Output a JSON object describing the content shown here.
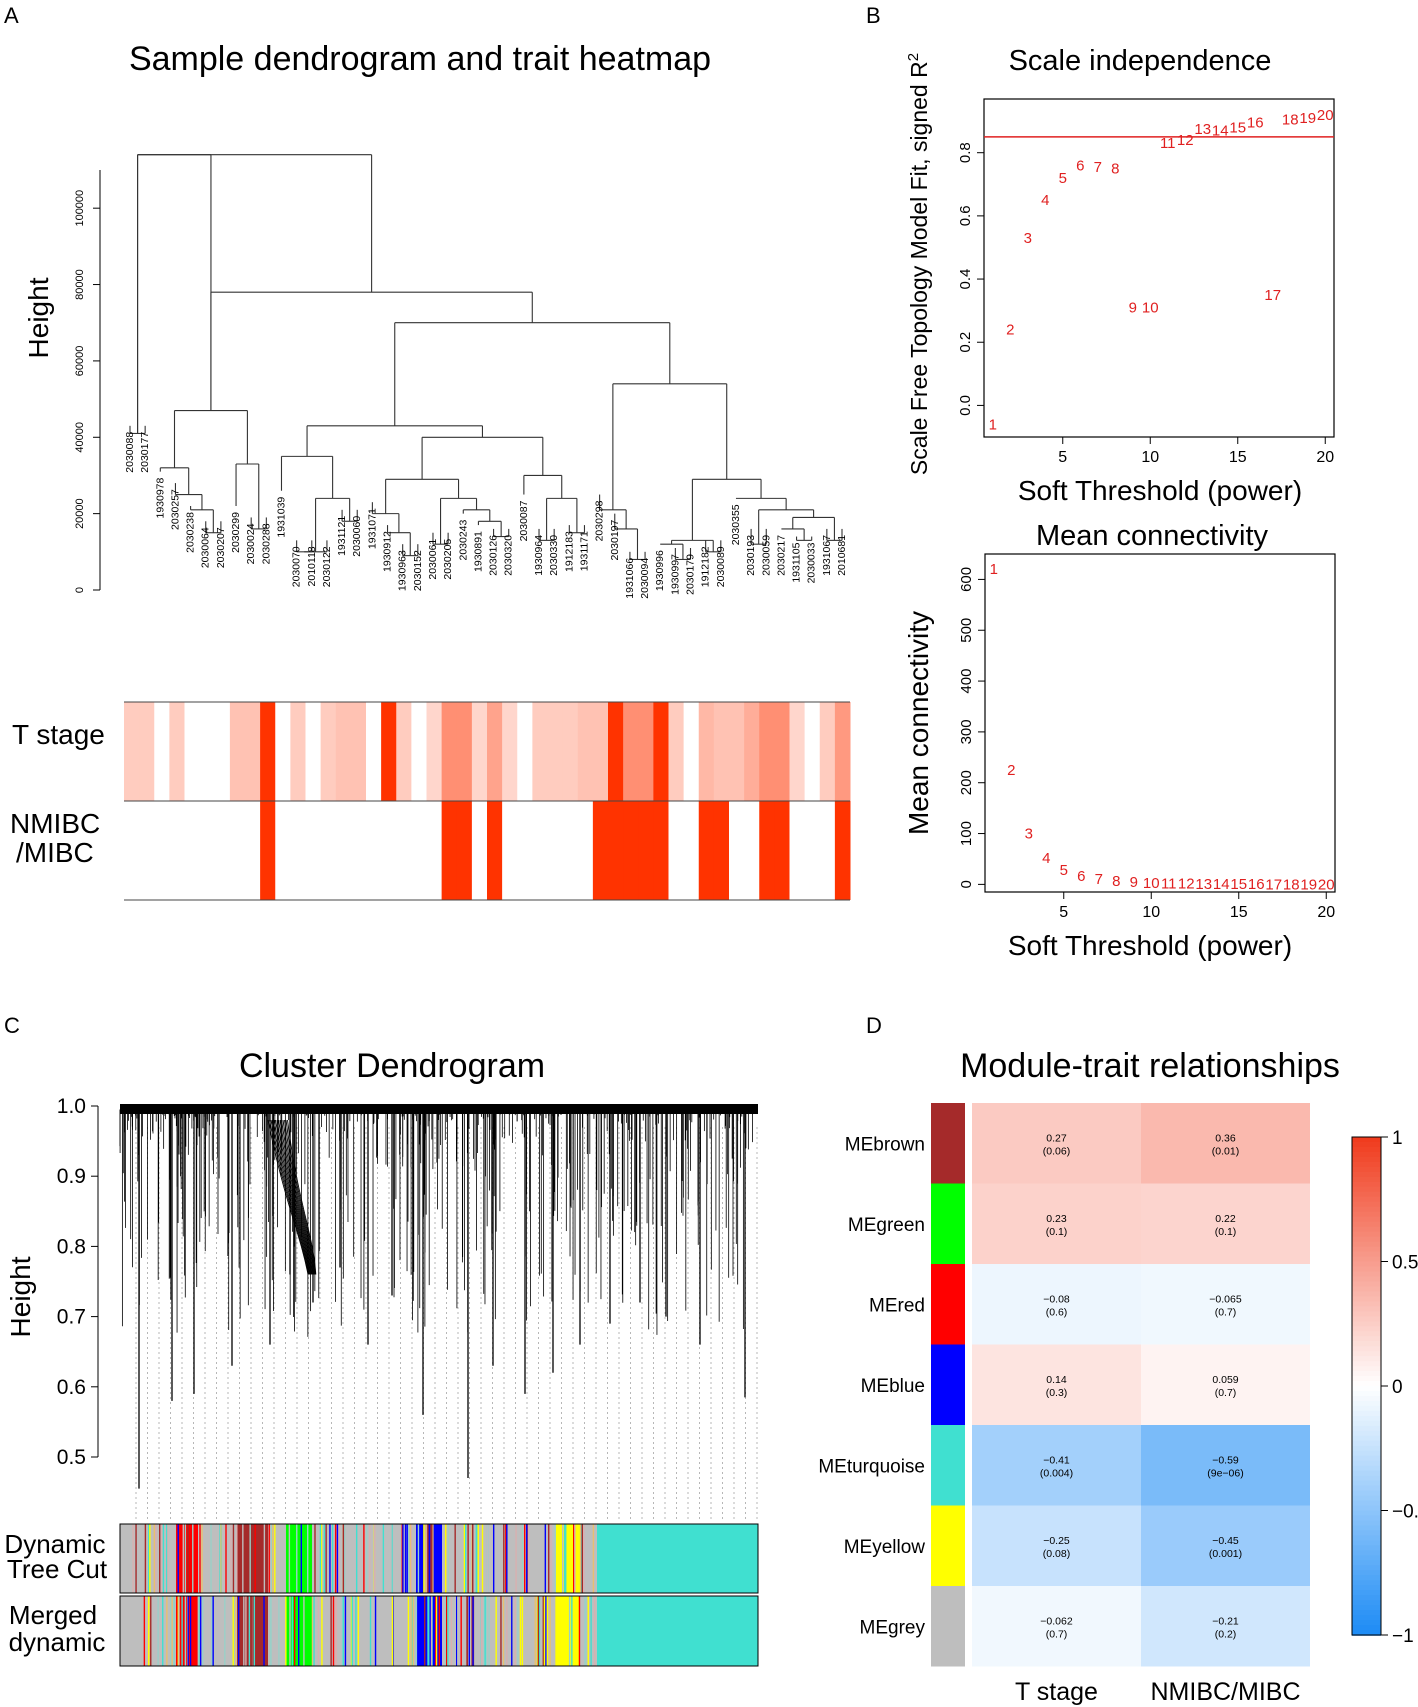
{
  "panel_labels": {
    "a": "A",
    "b": "B",
    "c": "C",
    "d": "D"
  },
  "chart_data": [
    {
      "type": "dendrogram_heatmap",
      "title": "Sample dendrogram and trait heatmap",
      "ylabel": "Height",
      "ylim": [
        0,
        110000
      ],
      "yticks": [
        "0",
        "20000",
        "40000",
        "60000",
        "80000",
        "100000"
      ],
      "samples": [
        "2030088",
        "2030177",
        "1930978",
        "2030257",
        "2030238",
        "2030064",
        "2030207",
        "2030299",
        "2030024",
        "2030288",
        "1931039",
        "2030070",
        "2010118",
        "2030122",
        "1931121",
        "2030060",
        "1931071",
        "1930912",
        "1930963",
        "2030152",
        "2030061",
        "2030205",
        "2030243",
        "1930891",
        "2030126",
        "2030320",
        "2030087",
        "1930964",
        "2030330",
        "1912183",
        "1931171",
        "2030298",
        "2030197",
        "1931066",
        "2030094",
        "1930996",
        "1930997",
        "2030179",
        "1912182",
        "2030089",
        "2030355",
        "2030193",
        "2030059",
        "2030217",
        "1931105",
        "2030033",
        "1931067",
        "2010681"
      ],
      "traits": [
        "T stage",
        "NMIBC\n/MIBC"
      ],
      "trait_labels": [
        "T stage",
        "NMIBC",
        "/MIBC"
      ]
    },
    {
      "type": "scatter",
      "title": "Scale independence",
      "xlabel": "Soft Threshold (power)",
      "ylabel": "Scale Free Topology Model Fit, signed R",
      "ylabel_sup": "2",
      "xlim": [
        0.5,
        20.5
      ],
      "ylim": [
        -0.1,
        0.97
      ],
      "xticks": [
        "5",
        "10",
        "15",
        "20"
      ],
      "yticks": [
        "0.0",
        "0.2",
        "0.4",
        "0.6",
        "0.8"
      ],
      "cutoff": 0.85,
      "x": [
        1,
        2,
        3,
        4,
        5,
        6,
        7,
        8,
        9,
        10,
        11,
        12,
        13,
        14,
        15,
        16,
        17,
        18,
        19,
        20
      ],
      "y": [
        -0.06,
        0.24,
        0.53,
        0.65,
        0.72,
        0.76,
        0.755,
        0.75,
        0.31,
        0.31,
        0.83,
        0.84,
        0.875,
        0.87,
        0.88,
        0.895,
        0.35,
        0.905,
        0.91,
        0.92
      ],
      "point_labels": [
        "1",
        "2",
        "3",
        "4",
        "5",
        "6",
        "7",
        "8",
        "9",
        "10",
        "11",
        "12",
        "13",
        "14",
        "15",
        "16",
        "17",
        "18",
        "19",
        "20"
      ]
    },
    {
      "type": "scatter",
      "title": "Mean connectivity",
      "xlabel": "Soft Threshold (power)",
      "ylabel": "Mean connectivity",
      "xlim": [
        0.5,
        20.5
      ],
      "ylim": [
        -15,
        650
      ],
      "xticks": [
        "5",
        "10",
        "15",
        "20"
      ],
      "yticks": [
        "0",
        "100",
        "200",
        "300",
        "400",
        "500",
        "600"
      ],
      "x": [
        1,
        2,
        3,
        4,
        5,
        6,
        7,
        8,
        9,
        10,
        11,
        12,
        13,
        14,
        15,
        16,
        17,
        18,
        19,
        20
      ],
      "y": [
        620,
        225,
        100,
        52,
        28,
        16,
        11,
        7,
        5,
        3,
        2,
        2,
        1,
        1,
        1,
        1,
        0,
        0,
        0,
        0
      ],
      "point_labels": [
        "1",
        "2",
        "3",
        "4",
        "5",
        "6",
        "7",
        "8",
        "9",
        "10",
        "11",
        "12",
        "13",
        "14",
        "15",
        "16",
        "17",
        "18",
        "19",
        "20"
      ]
    },
    {
      "type": "dendrogram",
      "title": "Cluster Dendrogram",
      "ylabel": "Height",
      "yticks": [
        "0.5",
        "0.6",
        "0.7",
        "0.8",
        "0.9",
        "1.0"
      ],
      "color_rows": [
        "Dynamic\nTree Cut",
        "Merged\ndynamic"
      ],
      "color_row_labels": [
        "Dynamic",
        "Tree Cut",
        "Merged",
        "dynamic"
      ],
      "colors": {
        "grey": "#bebebe",
        "red": "#ff0000",
        "brown": "#a52a2a",
        "green": "#00ff00",
        "blue": "#0000ff",
        "yellow": "#ffff00",
        "turquoise": "#40e0d0"
      }
    },
    {
      "type": "heatmap",
      "title": "Module-trait relationships",
      "rows": [
        "MEbrown",
        "MEgreen",
        "MEred",
        "MEblue",
        "MEturquoise",
        "MEyellow",
        "MEgrey"
      ],
      "row_colors": [
        "#a52a2a",
        "#00ff00",
        "#ff0000",
        "#0000ff",
        "#40e0d0",
        "#ffff00",
        "#bebebe"
      ],
      "columns": [
        "T stage",
        "NMIBC/MIBC"
      ],
      "values": [
        [
          0.27,
          0.36
        ],
        [
          0.23,
          0.22
        ],
        [
          -0.08,
          -0.065
        ],
        [
          0.14,
          0.059
        ],
        [
          -0.41,
          -0.59
        ],
        [
          -0.25,
          -0.45
        ],
        [
          -0.062,
          -0.21
        ]
      ],
      "value_labels": [
        [
          "0.27",
          "0.36"
        ],
        [
          "0.23",
          "0.22"
        ],
        [
          "−0.08",
          "−0.065"
        ],
        [
          "0.14",
          "0.059"
        ],
        [
          "−0.41",
          "−0.59"
        ],
        [
          "−0.25",
          "−0.45"
        ],
        [
          "−0.062",
          "−0.21"
        ]
      ],
      "pvalue_labels": [
        [
          "(0.06)",
          "(0.01)"
        ],
        [
          "(0.1)",
          "(0.1)"
        ],
        [
          "(0.6)",
          "(0.7)"
        ],
        [
          "(0.3)",
          "(0.7)"
        ],
        [
          "(0.004)",
          "(9e−06)"
        ],
        [
          "(0.08)",
          "(0.001)"
        ],
        [
          "(0.7)",
          "(0.2)"
        ]
      ],
      "colorbar_ticks": [
        "1",
        "0.5",
        "0",
        "−0.",
        "−1"
      ],
      "colorbar_range": [
        -1,
        1
      ]
    }
  ]
}
